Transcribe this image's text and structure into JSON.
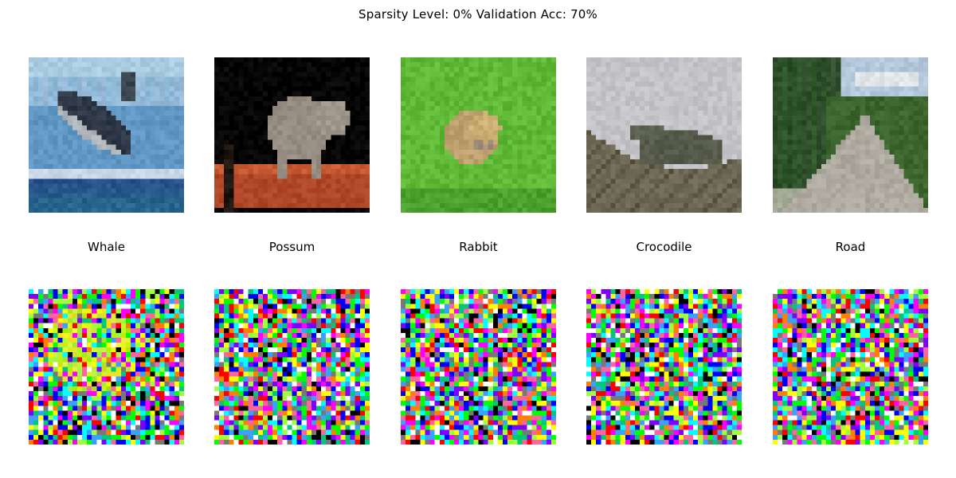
{
  "figure": {
    "title": "Sparsity Level: 0% Validation Acc: 70%"
  },
  "samples": [
    {
      "label": "Whale",
      "image_icon": "whale-image",
      "noise_icon": "whale-noise-image"
    },
    {
      "label": "Possum",
      "image_icon": "possum-image",
      "noise_icon": "possum-noise-image"
    },
    {
      "label": "Rabbit",
      "image_icon": "rabbit-image",
      "noise_icon": "rabbit-noise-image"
    },
    {
      "label": "Crocodile",
      "image_icon": "crocodile-image",
      "noise_icon": "crocodile-noise-image"
    },
    {
      "label": "Road",
      "image_icon": "road-image",
      "noise_icon": "road-noise-image"
    }
  ]
}
